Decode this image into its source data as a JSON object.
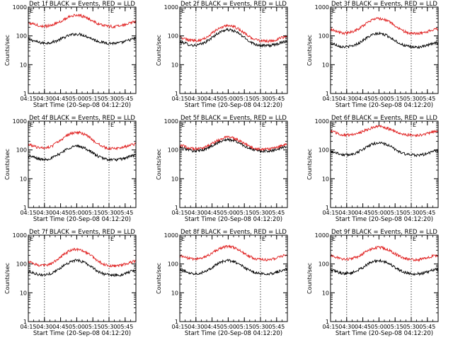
{
  "figure": {
    "xlabel": "Start Time (20-Sep-08 04:12:20)",
    "ylabel": "Counts/sec",
    "marker_label": "E",
    "x_range_min": [
      0,
      100
    ],
    "x_tick_values_min": [
      0,
      15,
      30,
      45,
      60,
      75,
      90
    ],
    "x_tick_labels": [
      "04:15",
      "04:30",
      "04:45",
      "05:00",
      "05:15",
      "05:30",
      "05:45"
    ],
    "y_range": [
      1,
      1000
    ],
    "y_scale": "log",
    "y_tick_values": [
      1,
      10,
      100,
      1000
    ],
    "y_tick_labels": [
      "1",
      "10",
      "100",
      "1000"
    ],
    "dotted_lines_min": [
      15,
      75
    ],
    "events_color": "#000000",
    "lld_color": "#e02020",
    "tick_spacing_min": 15
  },
  "chart_data": [
    {
      "type": "line",
      "title": "Det 1f BLACK = Events, RED = LLD",
      "series": [
        {
          "name": "BLACK = Events",
          "color": "#000000",
          "base": 55,
          "amp": 2.1
        },
        {
          "name": "RED = LLD",
          "color": "#e02020",
          "base": 210,
          "amp": 2.5
        }
      ]
    },
    {
      "type": "line",
      "title": "Det 2f BLACK = Events, RED = LLD",
      "series": [
        {
          "name": "BLACK = Events",
          "color": "#000000",
          "base": 45,
          "amp": 3.6
        },
        {
          "name": "RED = LLD",
          "color": "#e02020",
          "base": 65,
          "amp": 3.5
        }
      ]
    },
    {
      "type": "line",
      "title": "Det 3f BLACK = Events, RED = LLD",
      "series": [
        {
          "name": "BLACK = Events",
          "color": "#000000",
          "base": 40,
          "amp": 3.0
        },
        {
          "name": "RED = LLD",
          "color": "#e02020",
          "base": 120,
          "amp": 3.3
        }
      ]
    },
    {
      "type": "line",
      "title": "Det 4f BLACK = Events, RED = LLD",
      "series": [
        {
          "name": "BLACK = Events",
          "color": "#000000",
          "base": 45,
          "amp": 3.0
        },
        {
          "name": "RED = LLD",
          "color": "#e02020",
          "base": 110,
          "amp": 3.7
        }
      ]
    },
    {
      "type": "line",
      "title": "Det 5f BLACK = Events, RED = LLD",
      "series": [
        {
          "name": "BLACK = Events",
          "color": "#000000",
          "base": 90,
          "amp": 2.5
        },
        {
          "name": "RED = LLD",
          "color": "#e02020",
          "base": 105,
          "amp": 2.6
        }
      ]
    },
    {
      "type": "line",
      "title": "Det 6f BLACK = Events, RED = LLD",
      "series": [
        {
          "name": "BLACK = Events",
          "color": "#000000",
          "base": 65,
          "amp": 2.7
        },
        {
          "name": "RED = LLD",
          "color": "#e02020",
          "base": 320,
          "amp": 2.0
        }
      ]
    },
    {
      "type": "line",
      "title": "Det 7f BLACK = Events, RED = LLD",
      "series": [
        {
          "name": "BLACK = Events",
          "color": "#000000",
          "base": 40,
          "amp": 3.3
        },
        {
          "name": "RED = LLD",
          "color": "#e02020",
          "base": 85,
          "amp": 3.8
        }
      ]
    },
    {
      "type": "line",
      "title": "Det 8f BLACK = Events, RED = LLD",
      "series": [
        {
          "name": "BLACK = Events",
          "color": "#000000",
          "base": 45,
          "amp": 2.9
        },
        {
          "name": "RED = LLD",
          "color": "#e02020",
          "base": 140,
          "amp": 2.9
        }
      ]
    },
    {
      "type": "line",
      "title": "Det 9f BLACK = Events, RED = LLD",
      "series": [
        {
          "name": "BLACK = Events",
          "color": "#000000",
          "base": 45,
          "amp": 2.9
        },
        {
          "name": "RED = LLD",
          "color": "#e02020",
          "base": 140,
          "amp": 2.7
        }
      ]
    }
  ]
}
